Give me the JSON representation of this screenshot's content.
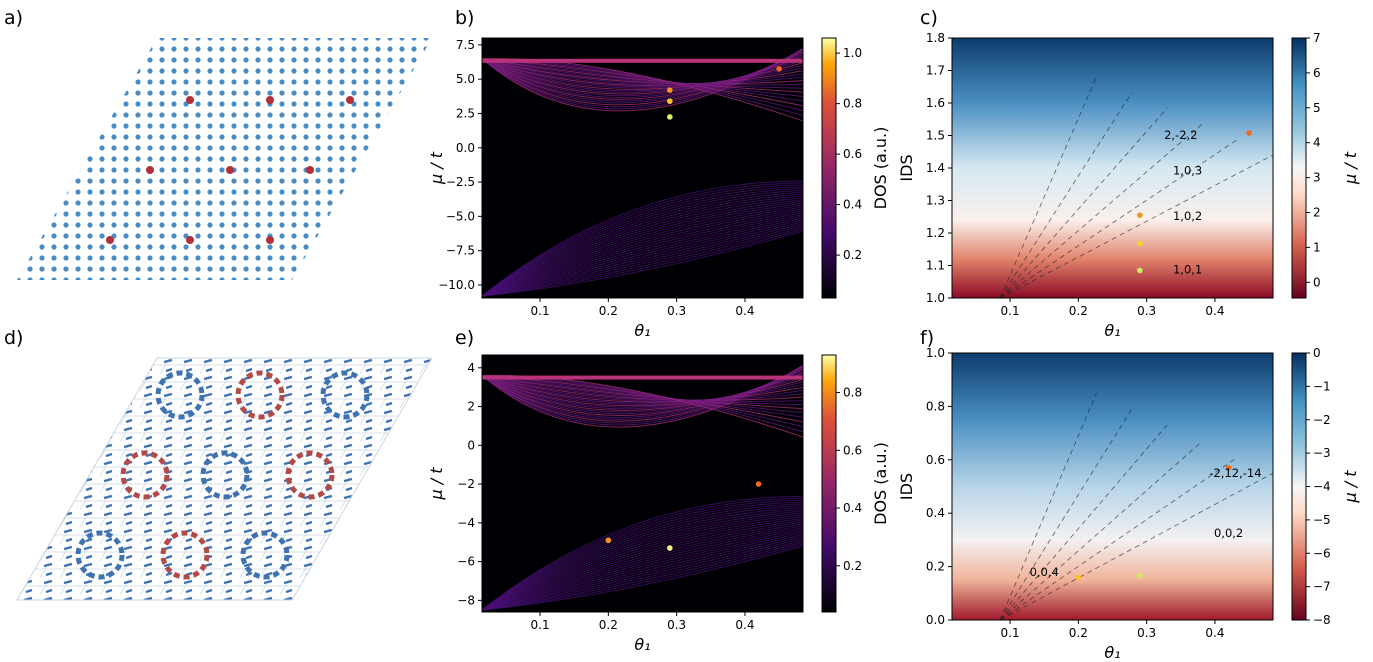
{
  "panel_labels": [
    "a)",
    "b)",
    "c)",
    "d)",
    "e)",
    "f)"
  ],
  "chart_data": [
    {
      "type": "heatmap",
      "colormap": "inferno",
      "xlabel": "θ₁",
      "ylabel": "μ / t",
      "xlim": [
        0.015,
        0.485
      ],
      "xticks": [
        0.1,
        0.2,
        0.3,
        0.4
      ],
      "ylim": [
        -10.95,
        8.0
      ],
      "yticks": [
        {
          "value": -10,
          "label": "−10.0"
        },
        {
          "value": -7.5,
          "label": "−7.5"
        },
        {
          "value": -5,
          "label": "−5.0"
        },
        {
          "value": -2.5,
          "label": "−2.5"
        },
        {
          "value": 0,
          "label": "0.0"
        },
        2.5,
        {
          "value": 5,
          "label": "5.0"
        },
        7.5
      ],
      "colorbar": {
        "label": "DOS (a.u.)",
        "lim": [
          0.03,
          1.06
        ],
        "ticks": [
          0.2,
          0.4,
          0.6,
          0.8,
          {
            "value": 1,
            "label": "1.0"
          }
        ]
      },
      "points": {
        "x": [
          0.29,
          0.29,
          0.29,
          0.45
        ],
        "y": [
          4.2,
          3.4,
          2.25,
          5.75
        ],
        "colors": [
          "#f7941d",
          "#f9c42a",
          "#d8f06a",
          "#f26b1d"
        ]
      }
    },
    {
      "type": "heatmap",
      "colormap": "RdBu",
      "xlabel": "θ₁",
      "ylabel": "IDS",
      "xlim": [
        0.015,
        0.485
      ],
      "xticks": [
        0.1,
        0.2,
        0.3,
        0.4
      ],
      "ylim": [
        1.0,
        1.8
      ],
      "yticks": [
        {
          "value": 1,
          "label": "1.0"
        },
        1.1,
        1.2,
        1.3,
        1.4,
        1.5,
        1.6,
        1.7,
        1.8
      ],
      "colorbar": {
        "label": "μ / t",
        "lim": [
          -0.45,
          7
        ],
        "ticks": [
          0,
          1,
          2,
          3,
          4,
          5,
          6,
          7
        ]
      },
      "points": {
        "x": [
          0.29,
          0.29,
          0.29,
          0.45
        ],
        "y": [
          1.085,
          1.168,
          1.255,
          1.508
        ],
        "colors": [
          "#c6ee62",
          "#f7d52a",
          "#f7941d",
          "#f26b1d"
        ]
      },
      "annotations": [
        {
          "text": "2,-2,2",
          "x": 0.35,
          "y": 1.49
        },
        {
          "text": "1,0,3",
          "x": 0.36,
          "y": 1.38
        },
        {
          "text": "1,0,2",
          "x": 0.36,
          "y": 1.24
        },
        {
          "text": "1,0,1",
          "x": 0.36,
          "y": 1.075
        }
      ]
    },
    {
      "type": "heatmap",
      "colormap": "inferno",
      "xlabel": "θ₁",
      "ylabel": "μ / t",
      "xlim": [
        0.015,
        0.485
      ],
      "xticks": [
        0.1,
        0.2,
        0.3,
        0.4
      ],
      "ylim": [
        -8.6,
        4.66
      ],
      "yticks": [
        {
          "value": -8,
          "label": "−8"
        },
        {
          "value": -6,
          "label": "−6"
        },
        {
          "value": -4,
          "label": "−4"
        },
        {
          "value": -2,
          "label": "−2"
        },
        0,
        2,
        4
      ],
      "colorbar": {
        "label": "DOS (a.u.)",
        "lim": [
          0.04,
          0.93
        ],
        "ticks": [
          0.2,
          0.4,
          0.6,
          0.8
        ]
      },
      "points": {
        "x": [
          0.2,
          0.29,
          0.42
        ],
        "y": [
          -4.9,
          -5.3,
          -2.0
        ],
        "colors": [
          "#f7941d",
          "#f3ee8a",
          "#f26b1d"
        ]
      }
    },
    {
      "type": "heatmap",
      "colormap": "RdBu",
      "xlabel": "θ₁",
      "ylabel": "IDS",
      "xlim": [
        0.015,
        0.485
      ],
      "xticks": [
        0.1,
        0.2,
        0.3,
        0.4
      ],
      "ylim": [
        0,
        1
      ],
      "yticks": [
        {
          "value": 0,
          "label": "0.0"
        },
        0.2,
        0.4,
        0.6,
        0.8,
        {
          "value": 1,
          "label": "1.0"
        }
      ],
      "colorbar": {
        "label": "μ / t",
        "lim": [
          -8,
          0
        ],
        "ticks": [
          {
            "value": -8,
            "label": "−8"
          },
          {
            "value": -7,
            "label": "−7"
          },
          {
            "value": -6,
            "label": "−6"
          },
          {
            "value": -5,
            "label": "−5"
          },
          {
            "value": -4,
            "label": "−4"
          },
          {
            "value": -3,
            "label": "−3"
          },
          {
            "value": -2,
            "label": "−2"
          },
          {
            "value": -1,
            "label": "−1"
          },
          0
        ]
      },
      "points": {
        "x": [
          0.2,
          0.29,
          0.42
        ],
        "y": [
          0.16,
          0.165,
          0.57
        ],
        "colors": [
          "#f9c42a",
          "#c6ee62",
          "#f26b1d"
        ]
      },
      "annotations": [
        {
          "text": "-2,12,-14",
          "x": 0.43,
          "y": 0.535
        },
        {
          "text": "0,0,2",
          "x": 0.42,
          "y": 0.31
        },
        {
          "text": "0,0,4",
          "x": 0.15,
          "y": 0.165
        }
      ]
    }
  ]
}
